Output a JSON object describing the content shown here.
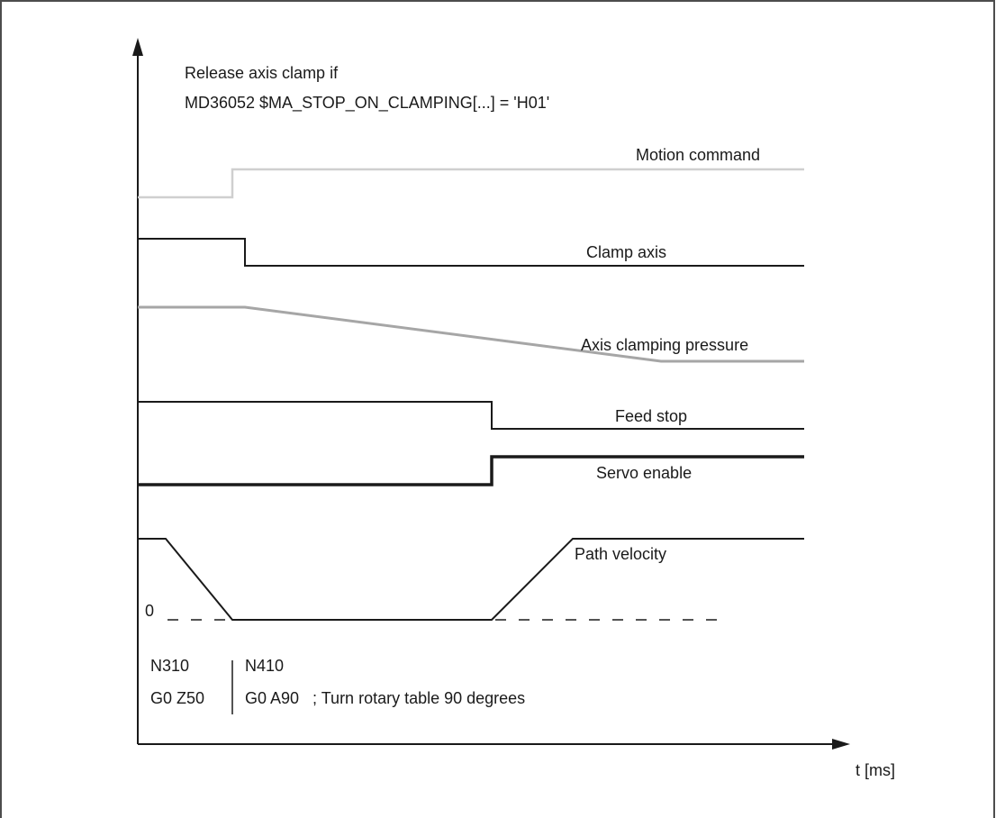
{
  "header": {
    "line1": "Release axis clamp if",
    "line2": "MD36052 $MA_STOP_ON_CLAMPING[...] = 'H01'"
  },
  "signals": {
    "motion_command": "Motion command",
    "clamp_axis": "Clamp axis",
    "axis_clamping_pressure": "Axis clamping pressure",
    "feed_stop": "Feed stop",
    "servo_enable": "Servo enable",
    "path_velocity": "Path velocity"
  },
  "zero_label": "0",
  "axis": {
    "x_label": "t [ms]"
  },
  "program": {
    "block1_line1": "N310",
    "block1_line2": "G0 Z50",
    "block2_line1": "N410",
    "block2_line2": "G0 A90   ; Turn rotary table 90 degrees"
  },
  "colors": {
    "black_signal": "#1a1a1a",
    "light_gray_signal": "#cfcfcf",
    "mid_gray_signal": "#a6a6a6",
    "frame": "#4d4d4d"
  }
}
